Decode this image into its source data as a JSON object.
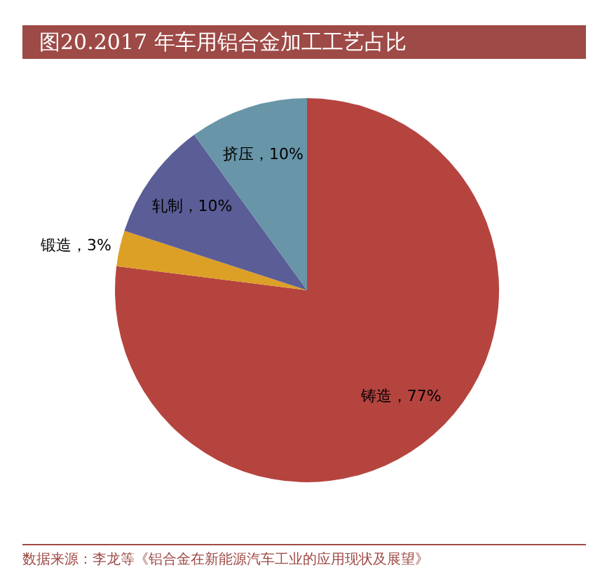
{
  "chart_data": {
    "type": "pie",
    "title": "图20.2017 年车用铝合金加工工艺占比",
    "categories": [
      "铸造",
      "锻造",
      "轧制",
      "挤压"
    ],
    "values": [
      77,
      3,
      10,
      10
    ],
    "colors": [
      "#b5443f",
      "#dca026",
      "#5b5d96",
      "#6895a8"
    ],
    "value_labels": [
      "77%",
      "3%",
      "10%",
      "10%"
    ],
    "legend": false,
    "annotations": [
      "数据来源：李龙等《铝合金在新能源汽车工业的应用现状及展望》"
    ]
  }
}
